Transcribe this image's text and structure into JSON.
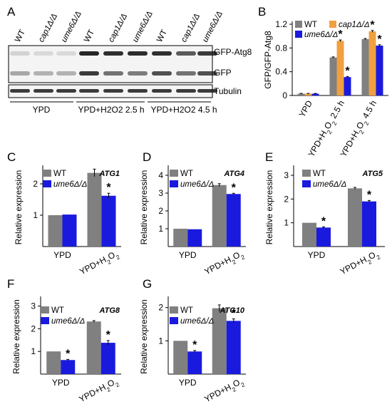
{
  "colors": {
    "wt": "#808080",
    "cap1": "#f0a040",
    "ume6": "#1a1adf",
    "axis": "#000000",
    "blot_band": "#1a1a1a"
  },
  "panels": {
    "A": {
      "letter": "A"
    },
    "B": {
      "letter": "B"
    },
    "C": {
      "letter": "C"
    },
    "D": {
      "letter": "D"
    },
    "E": {
      "letter": "E"
    },
    "F": {
      "letter": "F"
    },
    "G": {
      "letter": "G"
    }
  },
  "blot": {
    "lane_labels": [
      "WT",
      "cap1Δ/Δ",
      "ume6Δ/Δ",
      "WT",
      "cap1Δ/Δ",
      "ume6Δ/Δ",
      "WT",
      "cap1Δ/Δ",
      "ume6Δ/Δ"
    ],
    "band_labels": {
      "gfp_atg8": "GFP-Atg8",
      "gfp": "GFP",
      "tubulin": "Tubulin"
    },
    "groups": {
      "ypd": "YPD",
      "h2o2_25": "YPD+H2O2 2.5 h",
      "h2o2_45": "YPD+H2O2 4.5 h"
    }
  },
  "chart_data": [
    {
      "id": "B",
      "type": "bar",
      "ylabel": "GFP/GFP-Atg8",
      "ylim": [
        0,
        1.2
      ],
      "yticks": [
        "0",
        "0.4",
        "0.8",
        "1.2"
      ],
      "categories": [
        "YPD",
        "YPD+H2O2 2.5 h",
        "YPD+H2O2 4.5 h"
      ],
      "series": [
        {
          "name": "WT",
          "values": [
            0.03,
            0.64,
            0.95
          ],
          "errors": [
            0.005,
            0.01,
            0.01
          ],
          "stars": [
            false,
            false,
            false
          ]
        },
        {
          "name": "cap1Δ/Δ",
          "values": [
            0.03,
            0.92,
            1.08
          ],
          "errors": [
            0.005,
            0.015,
            0.015
          ],
          "stars": [
            false,
            true,
            true
          ]
        },
        {
          "name": "ume6Δ/Δ",
          "values": [
            0.03,
            0.31,
            0.84
          ],
          "errors": [
            0.005,
            0.01,
            0.015
          ],
          "stars": [
            false,
            true,
            true
          ]
        }
      ],
      "legend": "top-left"
    },
    {
      "id": "C",
      "type": "bar",
      "gene": "ATG1",
      "ylabel": "Relative expression",
      "ylim": [
        0,
        2.5
      ],
      "yticks": [
        "1",
        "2"
      ],
      "categories": [
        "YPD",
        "YPD+H2O2"
      ],
      "series": [
        {
          "name": "WT",
          "values": [
            1.0,
            2.35
          ],
          "errors": [
            0.0,
            0.12
          ],
          "stars": [
            false,
            false
          ]
        },
        {
          "name": "ume6Δ/Δ",
          "values": [
            1.02,
            1.62
          ],
          "errors": [
            0.0,
            0.08
          ],
          "stars": [
            false,
            true
          ]
        }
      ]
    },
    {
      "id": "D",
      "type": "bar",
      "gene": "ATG4",
      "ylabel": "Relative expression",
      "ylim": [
        0,
        4.4
      ],
      "yticks": [
        "1",
        "2",
        "3",
        "4"
      ],
      "categories": [
        "YPD",
        "YPD+H2O2"
      ],
      "series": [
        {
          "name": "WT",
          "values": [
            1.0,
            3.45
          ],
          "errors": [
            0.0,
            0.08
          ],
          "stars": [
            false,
            false
          ]
        },
        {
          "name": "ume6Δ/Δ",
          "values": [
            0.97,
            2.95
          ],
          "errors": [
            0.0,
            0.04
          ],
          "stars": [
            false,
            true
          ]
        }
      ]
    },
    {
      "id": "E",
      "type": "bar",
      "gene": "ATG5",
      "ylabel": "Relative expression",
      "ylim": [
        0,
        3.3
      ],
      "yticks": [
        "1",
        "2",
        "3"
      ],
      "categories": [
        "YPD",
        "YPD+H2O2"
      ],
      "series": [
        {
          "name": "WT",
          "values": [
            1.0,
            2.45
          ],
          "errors": [
            0.0,
            0.04
          ],
          "stars": [
            false,
            false
          ]
        },
        {
          "name": "ume6Δ/Δ",
          "values": [
            0.8,
            1.9
          ],
          "errors": [
            0.03,
            0.04
          ],
          "stars": [
            true,
            true
          ]
        }
      ]
    },
    {
      "id": "F",
      "type": "bar",
      "gene": "ATG8",
      "ylabel": "Relative expression",
      "ylim": [
        0,
        3.3
      ],
      "yticks": [
        "1",
        "2",
        "3"
      ],
      "categories": [
        "YPD",
        "YPD+H2O2"
      ],
      "series": [
        {
          "name": "WT",
          "values": [
            1.0,
            2.32
          ],
          "errors": [
            0.0,
            0.04
          ],
          "stars": [
            false,
            false
          ]
        },
        {
          "name": "ume6Δ/Δ",
          "values": [
            0.62,
            1.38
          ],
          "errors": [
            0.03,
            0.1
          ],
          "stars": [
            true,
            true
          ]
        }
      ]
    },
    {
      "id": "G",
      "type": "bar",
      "gene": "ATG10",
      "ylabel": "Relative expression",
      "ylim": [
        0,
        2.25
      ],
      "yticks": [
        "1",
        "2"
      ],
      "categories": [
        "YPD",
        "YPD+H2O2"
      ],
      "series": [
        {
          "name": "WT",
          "values": [
            1.0,
            1.98
          ],
          "errors": [
            0.0,
            0.1
          ],
          "stars": [
            false,
            false
          ]
        },
        {
          "name": "ume6Δ/Δ",
          "values": [
            0.68,
            1.6
          ],
          "errors": [
            0.03,
            0.06
          ],
          "stars": [
            true,
            true
          ]
        }
      ]
    }
  ]
}
